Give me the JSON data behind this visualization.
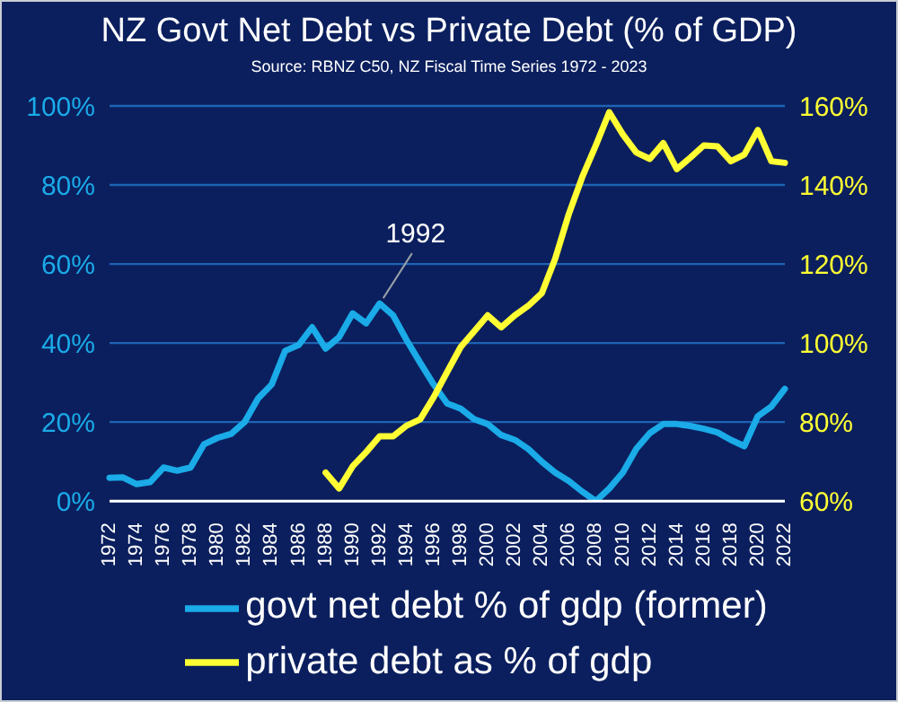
{
  "chart_data": {
    "type": "line",
    "title": "NZ Govt Net Debt vs Private Debt (% of GDP)",
    "subtitle": "Source: RBNZ C50, NZ Fiscal Time Series 1972 - 2023",
    "categories": [
      "1972",
      null,
      "1974",
      null,
      "1976",
      null,
      "1978",
      null,
      "1980",
      null,
      "1982",
      null,
      "1984",
      null,
      "1986",
      null,
      "1988",
      null,
      "1990",
      null,
      "1992",
      null,
      "1994",
      null,
      "1996",
      null,
      "1998",
      null,
      "2000",
      null,
      "2002",
      null,
      "2004",
      null,
      "2006",
      null,
      "2008",
      null,
      "2010",
      null,
      "2012",
      null,
      "2014",
      null,
      "2016",
      null,
      "2018",
      null,
      "2020",
      null,
      "2022"
    ],
    "series": [
      {
        "name": "govt net debt % of gdp (former)",
        "color": "#1aabe8",
        "values": [
          5.9,
          6,
          4.3,
          4.8,
          8.5,
          7.7,
          8.5,
          14.4,
          16,
          17,
          20,
          26,
          29.5,
          38,
          39.5,
          44,
          38.6,
          41.5,
          47.5,
          45,
          50,
          47,
          40.7,
          35,
          29.5,
          24.7,
          23.4,
          20.7,
          19.5,
          16.7,
          15.5,
          13.2,
          10,
          7.2,
          5.1,
          2.4,
          0,
          3.2,
          7.2,
          13.2,
          17.2,
          19.5,
          19.5,
          19,
          18.3,
          17.4,
          15.5,
          13.9,
          21.5,
          23.9,
          28.4
        ]
      },
      {
        "name": "private debt as % of gdp",
        "color": "#ffff33",
        "axis": "y2",
        "values": [
          null,
          null,
          null,
          null,
          null,
          null,
          null,
          null,
          null,
          null,
          null,
          null,
          null,
          null,
          null,
          null,
          67.2,
          63.2,
          68.8,
          72.4,
          76.4,
          76.4,
          79.1,
          80.7,
          86.3,
          92.7,
          99,
          103,
          107,
          104,
          107,
          109.4,
          112.6,
          121.4,
          132.6,
          142,
          150,
          158.4,
          152.8,
          148.2,
          146.6,
          150.6,
          144,
          146.9,
          150,
          149.8,
          146,
          147.7,
          153.9,
          146,
          145.6
        ]
      }
    ],
    "ylim": [
      0,
      100
    ],
    "yticks": [
      {
        "value": 0,
        "label": "0%"
      },
      {
        "value": 20,
        "label": "20%"
      },
      {
        "value": 40,
        "label": "40%"
      },
      {
        "value": 60,
        "label": "60%"
      },
      {
        "value": 80,
        "label": "80%"
      },
      {
        "value": 100,
        "label": "100%"
      }
    ],
    "y2lim": [
      60,
      160
    ],
    "y2ticks": [
      {
        "value": 60,
        "label": "60%"
      },
      {
        "value": 80,
        "label": "80%"
      },
      {
        "value": 100,
        "label": "100%"
      },
      {
        "value": 120,
        "label": "120%"
      },
      {
        "value": 140,
        "label": "140%"
      },
      {
        "value": 160,
        "label": "160%"
      }
    ],
    "annotations": [
      {
        "text": "1992",
        "x": "1992",
        "y": 50
      }
    ],
    "grid": "y",
    "legend": "bottom"
  }
}
